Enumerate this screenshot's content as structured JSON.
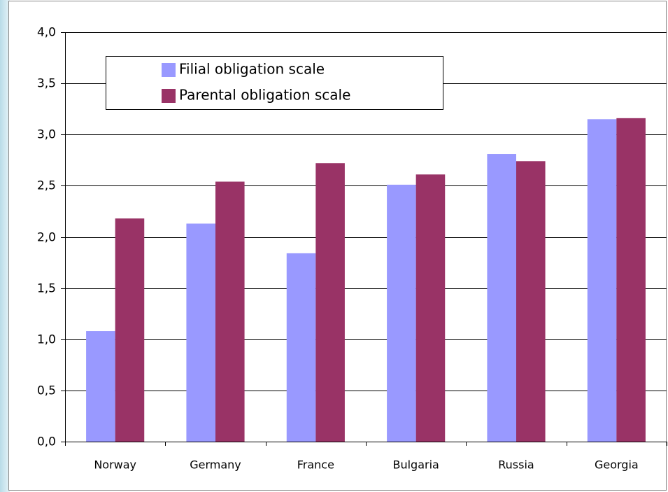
{
  "chart_data": {
    "type": "bar",
    "categories": [
      "Norway",
      "Germany",
      "France",
      "Bulgaria",
      "Russia",
      "Georgia"
    ],
    "series": [
      {
        "name": "Filial obligation scale",
        "color": "#9999ff",
        "values": [
          1.08,
          2.13,
          1.84,
          2.51,
          2.81,
          3.15
        ]
      },
      {
        "name": "Parental obligation scale",
        "color": "#993366",
        "values": [
          2.18,
          2.54,
          2.72,
          2.61,
          2.74,
          3.16
        ]
      }
    ],
    "ylim": [
      0,
      4
    ],
    "yticks": [
      {
        "value": 0,
        "label": "0,0"
      },
      {
        "value": 0.5,
        "label": "0,5"
      },
      {
        "value": 1,
        "label": "1,0"
      },
      {
        "value": 1.5,
        "label": "1,5"
      },
      {
        "value": 2,
        "label": "2,0"
      },
      {
        "value": 2.5,
        "label": "2,5"
      },
      {
        "value": 3,
        "label": "3,0"
      },
      {
        "value": 3.5,
        "label": "3,5"
      },
      {
        "value": 4,
        "label": "4,0"
      }
    ],
    "grid": true
  }
}
